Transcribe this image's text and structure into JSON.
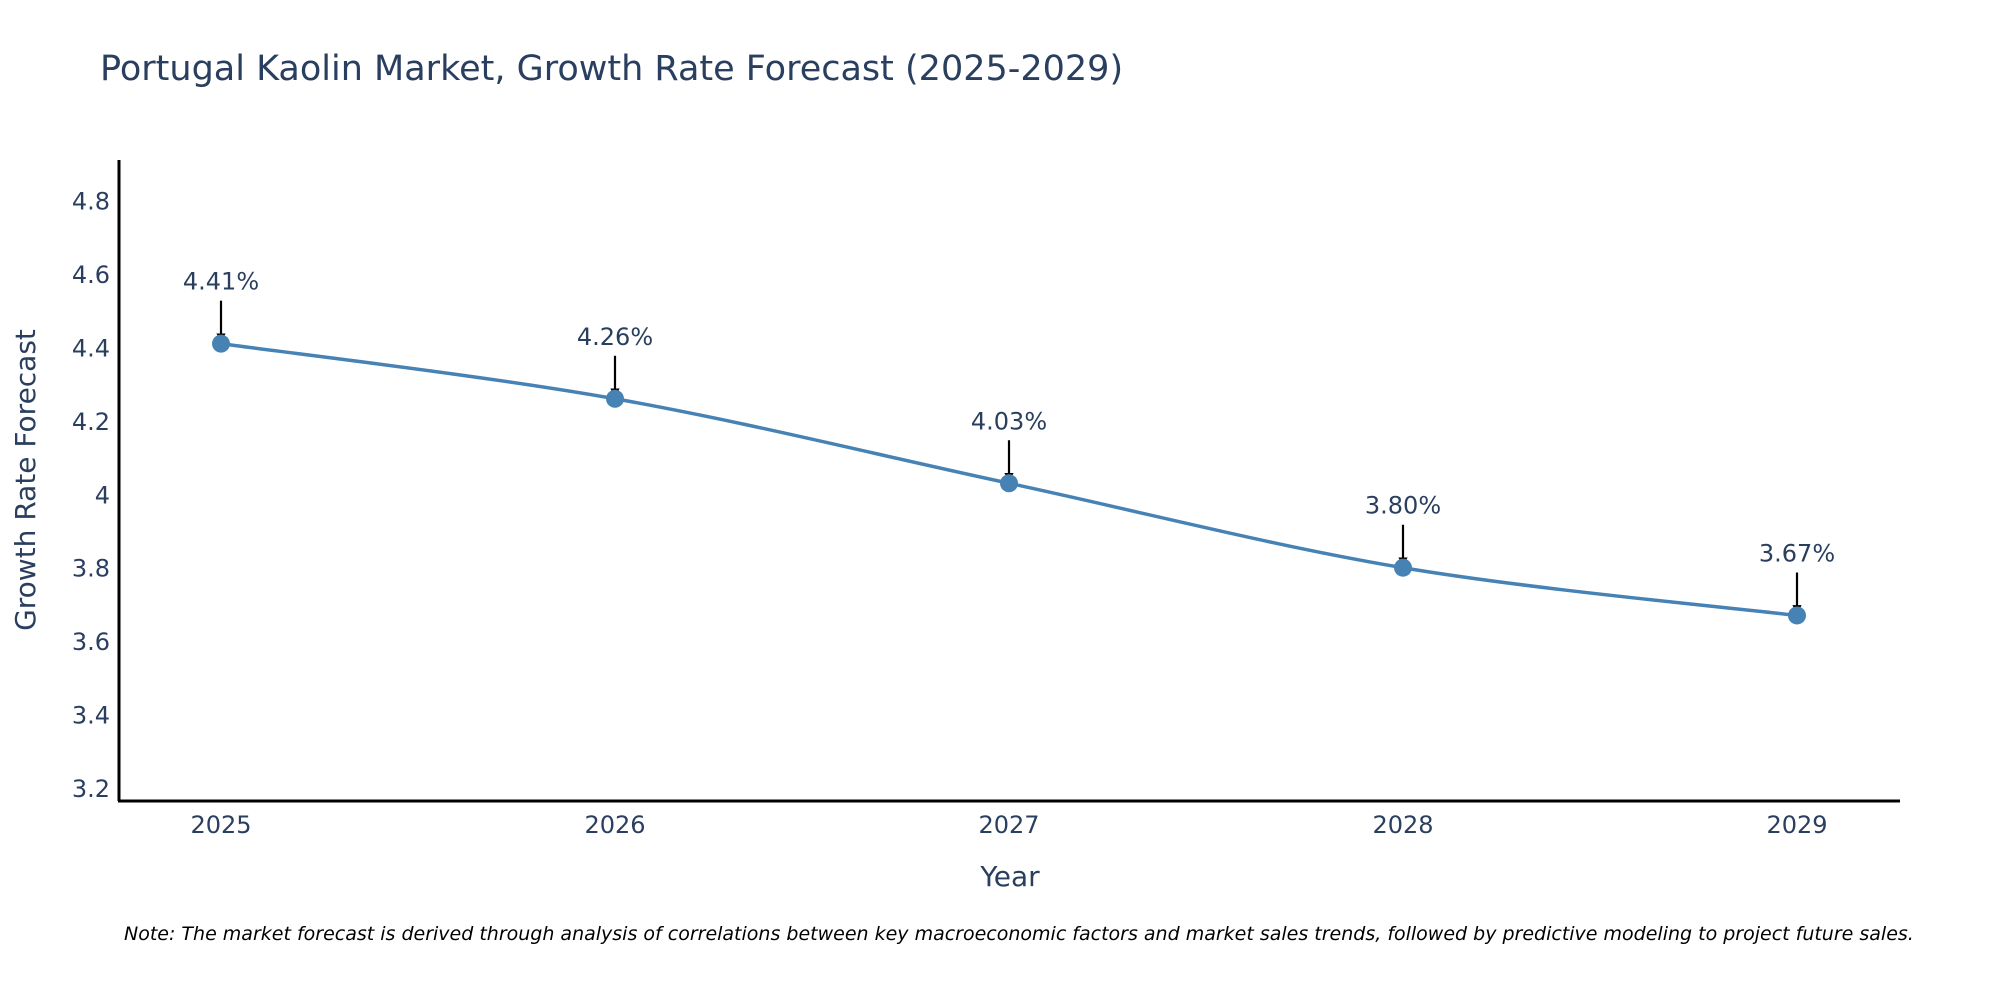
{
  "chart_data": {
    "type": "line",
    "title": "Portugal Kaolin Market, Growth Rate Forecast (2025-2029)",
    "xlabel": "Year",
    "ylabel": "Growth Rate Forecast",
    "categories": [
      "2025",
      "2026",
      "2027",
      "2028",
      "2029"
    ],
    "series": [
      {
        "name": "Growth Rate Forecast",
        "values": [
          4.41,
          4.26,
          4.03,
          3.8,
          3.67
        ],
        "labels": [
          "4.41%",
          "4.26%",
          "4.03%",
          "3.80%",
          "3.67%"
        ]
      }
    ],
    "ylim": [
      3.165,
      4.91
    ],
    "yticks": [
      3.2,
      3.4,
      3.6,
      3.8,
      4.0,
      4.2,
      4.4,
      4.6,
      4.8
    ],
    "ytick_labels": [
      "3.2",
      "3.4",
      "3.6",
      "3.8",
      "4",
      "4.2",
      "4.4",
      "4.6",
      "4.8"
    ],
    "grid": false,
    "line_shape": "spline",
    "line_color": "#4682b4",
    "marker_color": "#4682b4",
    "arrow_color": "#000000",
    "note": "Note: The market forecast is derived through analysis of correlations between key macroeconomic factors and market sales trends, followed by predictive modeling to project future sales."
  }
}
